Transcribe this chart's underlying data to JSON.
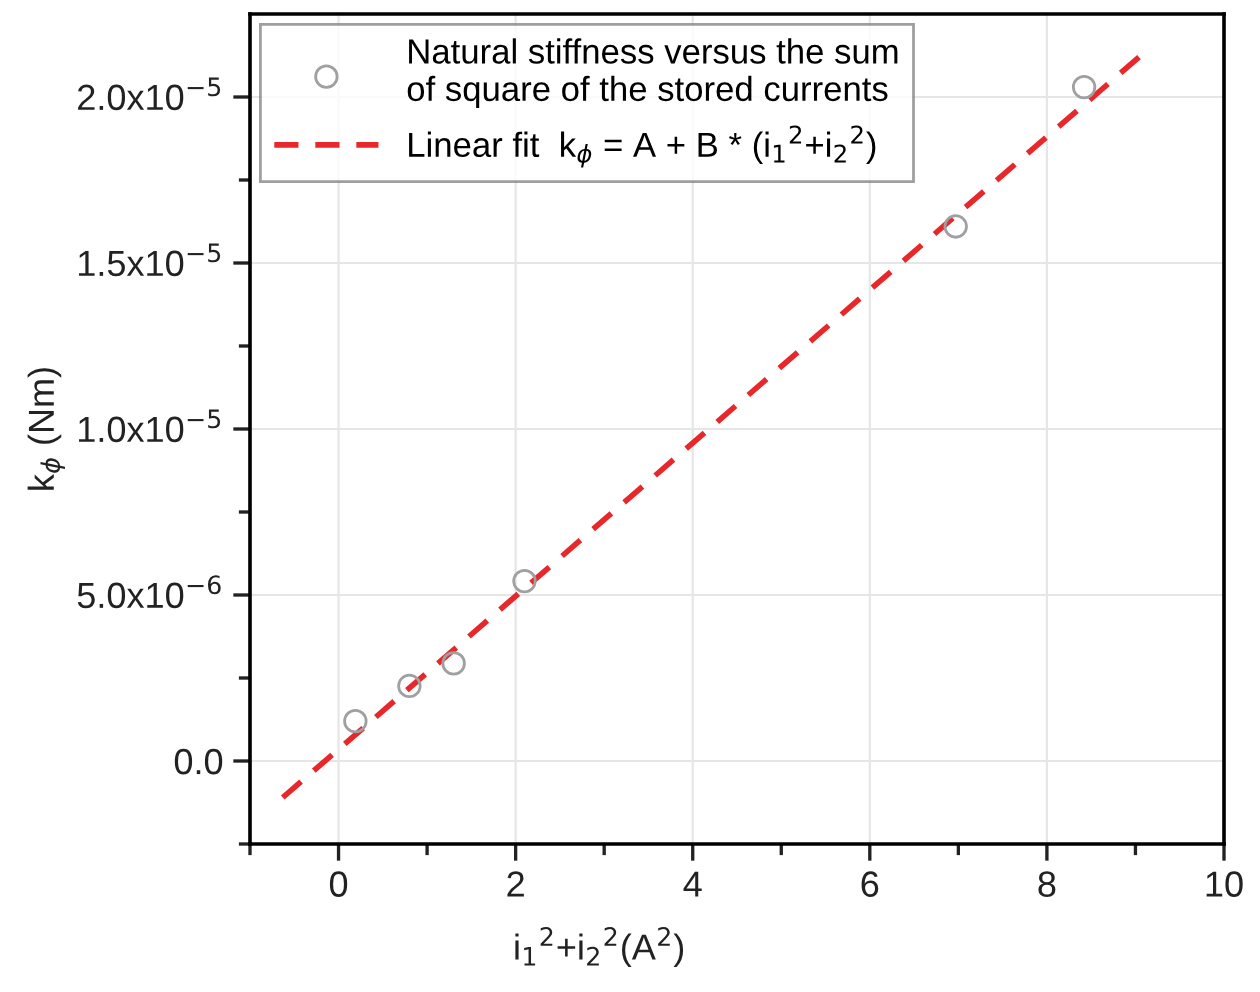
{
  "chart_data": {
    "type": "scatter",
    "xlabel": "i$_{1}$$^{2}$+i$_{2}$$^{2}$(A$^{2}$)",
    "ylabel": "k$_{ϕ}$ (Nm)",
    "xlim": [
      -1,
      10
    ],
    "ylim": [
      -2.5e-06,
      2.25e-05
    ],
    "xticks": [
      {
        "value": -1,
        "label": null
      },
      0,
      {
        "value": 1,
        "label": null
      },
      2,
      {
        "value": 3,
        "label": null
      },
      4,
      {
        "value": 5,
        "label": null
      },
      6,
      {
        "value": 7,
        "label": null
      },
      8,
      {
        "value": 9,
        "label": null
      },
      10
    ],
    "yticks": [
      {
        "value": -2.5e-06,
        "label": null
      },
      {
        "value": 0,
        "label": "0.0"
      },
      {
        "value": 2.5e-06,
        "label": null
      },
      {
        "value": 5e-06,
        "label": "5.0x10$^{−6}$"
      },
      {
        "value": 7.5e-06,
        "label": null
      },
      {
        "value": 1e-05,
        "label": "1.0x10$^{−5}$"
      },
      {
        "value": 1.25e-05,
        "label": null
      },
      {
        "value": 1.5e-05,
        "label": "1.5x10$^{−5}$"
      },
      {
        "value": 1.75e-05,
        "label": null
      },
      {
        "value": 2e-05,
        "label": "2.0x10$^{−5}$"
      }
    ],
    "grid": true,
    "legend": "top left",
    "series": [
      {
        "name": "Natural stiffness versus the sum\nof square of the stored currents",
        "marker": "circle",
        "color": "#a0a0a0",
        "x": [
          0.19,
          0.8,
          1.3,
          2.1,
          6.97,
          8.42
        ],
        "values": [
          1.2e-06,
          2.26e-06,
          2.94e-06,
          5.42e-06,
          1.61e-05,
          2.03e-05
        ]
      },
      {
        "name": "Linear fit  k$_{ϕ}$ = A + B * (i$_{1}$$^{2}$+i$_{2}$$^{2}$)",
        "type": "line",
        "line_style": "dashed",
        "marker": "none",
        "color": "#e8272b",
        "x": [
          -0.63,
          9.04
        ],
        "values": [
          -1.1e-06,
          2.12e-05
        ]
      }
    ]
  }
}
